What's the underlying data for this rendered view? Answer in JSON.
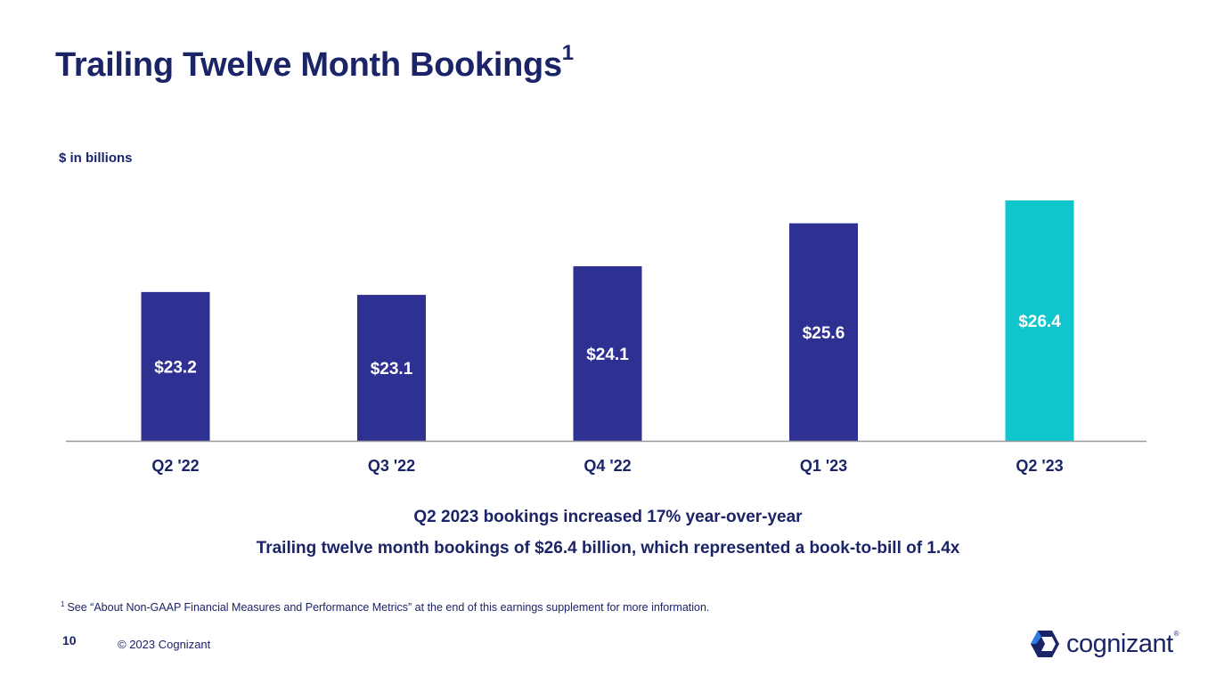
{
  "slide": {
    "title": "Trailing Twelve Month Bookings",
    "title_footnote_marker": "1",
    "unit_label": "$ in billions",
    "note_line1": "Q2 2023 bookings increased 17% year-over-year",
    "note_line2": "Trailing twelve month bookings of $26.4 billion, which represented a book-to-bill of 1.4x",
    "footnote_marker": "1",
    "footnote_text": "See “About Non-GAAP Financial Measures and Performance Metrics” at the end of this earnings supplement for more information.",
    "page_number": "10",
    "copyright": "© 2023 Cognizant",
    "logo_text": "cognizant",
    "logo_reg": "®"
  },
  "colors": {
    "primary": "#2e3192",
    "highlight": "#0ec6cc",
    "axis": "#9a9a9a",
    "text": "#1b2467"
  },
  "chart_data": {
    "type": "bar",
    "title": "Trailing Twelve Month Bookings",
    "ylabel": "$ in billions",
    "xlabel": "",
    "categories": [
      "Q2 '22",
      "Q3 '22",
      "Q4 '22",
      "Q1 '23",
      "Q2 '23"
    ],
    "values": [
      23.2,
      23.1,
      24.1,
      25.6,
      26.4
    ],
    "value_labels": [
      "$23.2",
      "$23.1",
      "$24.1",
      "$25.6",
      "$26.4"
    ],
    "highlight_index": 4,
    "ylim": [
      18.0,
      26.4
    ],
    "grid": false,
    "legend": "none"
  }
}
